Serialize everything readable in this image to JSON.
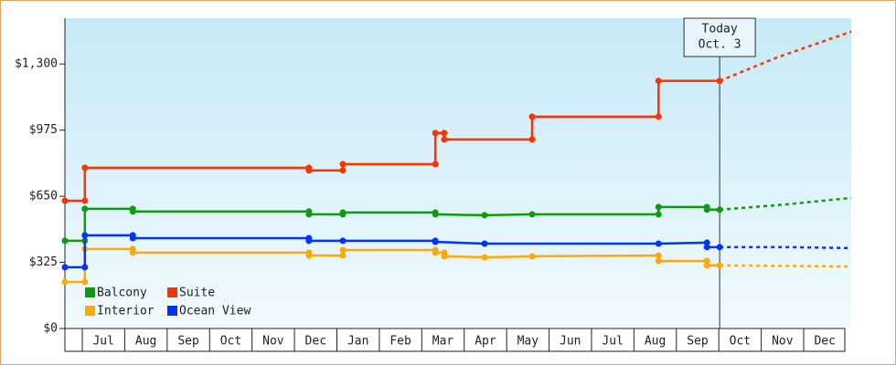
{
  "chart_data": {
    "type": "line",
    "xlim": [
      -0.41,
      18.12
    ],
    "ylim": [
      0,
      1525
    ],
    "yticks": [
      {
        "value": 0,
        "label": "$0"
      },
      {
        "value": 325,
        "label": "$325"
      },
      {
        "value": 650,
        "label": "$650"
      },
      {
        "value": 975,
        "label": "$975"
      },
      {
        "value": 1300,
        "label": "$1,300"
      }
    ],
    "xticks": [
      {
        "value": 0.5,
        "label": "Jul"
      },
      {
        "value": 1.5,
        "label": "Aug"
      },
      {
        "value": 2.5,
        "label": "Sep"
      },
      {
        "value": 3.5,
        "label": "Oct"
      },
      {
        "value": 4.5,
        "label": "Nov"
      },
      {
        "value": 5.5,
        "label": "Dec"
      },
      {
        "value": 6.5,
        "label": "Jan"
      },
      {
        "value": 7.5,
        "label": "Feb"
      },
      {
        "value": 8.5,
        "label": "Mar"
      },
      {
        "value": 9.5,
        "label": "Apr"
      },
      {
        "value": 10.5,
        "label": "May"
      },
      {
        "value": 11.5,
        "label": "Jun"
      },
      {
        "value": 12.5,
        "label": "Jul"
      },
      {
        "value": 13.5,
        "label": "Aug"
      },
      {
        "value": 14.5,
        "label": "Sep"
      },
      {
        "value": 15.5,
        "label": "Oct"
      },
      {
        "value": 16.5,
        "label": "Nov"
      },
      {
        "value": 17.5,
        "label": "Dec"
      }
    ],
    "today": {
      "x": 15.02,
      "label": "Today",
      "date": "Oct. 3"
    },
    "series": [
      {
        "name": "Balcony",
        "color": "#119911",
        "x": [
          -0.41,
          0.06,
          0.06,
          1.19,
          1.19,
          5.34,
          5.34,
          6.14,
          6.14,
          8.32,
          8.32,
          9.48,
          10.6,
          13.58,
          13.58,
          14.72,
          14.72,
          15.02
        ],
        "values": [
          431,
          431,
          588,
          588,
          575,
          575,
          561,
          561,
          570,
          570,
          561,
          557,
          561,
          561,
          597,
          597,
          584,
          584
        ],
        "forecast": {
          "x": [
            15.02,
            16.59,
            18.12
          ],
          "values": [
            584,
            610,
            642
          ]
        }
      },
      {
        "name": "Suite",
        "color": "#ff3300",
        "x": [
          -0.41,
          0.06,
          0.06,
          5.34,
          5.34,
          6.14,
          6.14,
          8.32,
          8.32,
          8.53,
          8.53,
          10.6,
          10.6,
          13.58,
          13.58,
          15.02
        ],
        "values": [
          628,
          628,
          790,
          790,
          777,
          777,
          808,
          808,
          961,
          961,
          929,
          929,
          1041,
          1041,
          1217,
          1217
        ],
        "forecast": {
          "x": [
            15.02,
            16.38,
            18.12
          ],
          "values": [
            1217,
            1333,
            1459
          ]
        }
      },
      {
        "name": "Interior",
        "color": "#ffaa00",
        "x": [
          -0.41,
          0.06,
          0.06,
          1.19,
          1.19,
          5.34,
          5.34,
          6.14,
          6.14,
          8.32,
          8.32,
          8.53,
          8.53,
          9.48,
          10.6,
          13.58,
          13.58,
          14.72,
          14.72,
          15.02
        ],
        "values": [
          229,
          229,
          391,
          391,
          373,
          373,
          359,
          359,
          386,
          386,
          373,
          373,
          355,
          350,
          355,
          359,
          332,
          332,
          310,
          310
        ],
        "forecast": {
          "x": [
            15.02,
            18.12
          ],
          "values": [
            310,
            305
          ]
        }
      },
      {
        "name": "Ocean View",
        "color": "#0033ff",
        "x": [
          -0.41,
          0.06,
          0.06,
          1.19,
          1.19,
          5.34,
          5.34,
          6.14,
          8.32,
          8.32,
          9.48,
          13.58,
          14.72,
          14.72,
          15.02
        ],
        "values": [
          301,
          301,
          458,
          458,
          444,
          444,
          431,
          431,
          431,
          426,
          417,
          417,
          422,
          400,
          400
        ],
        "forecast": {
          "x": [
            15.02,
            16.59,
            18.12
          ],
          "values": [
            400,
            400,
            395
          ]
        }
      }
    ]
  }
}
